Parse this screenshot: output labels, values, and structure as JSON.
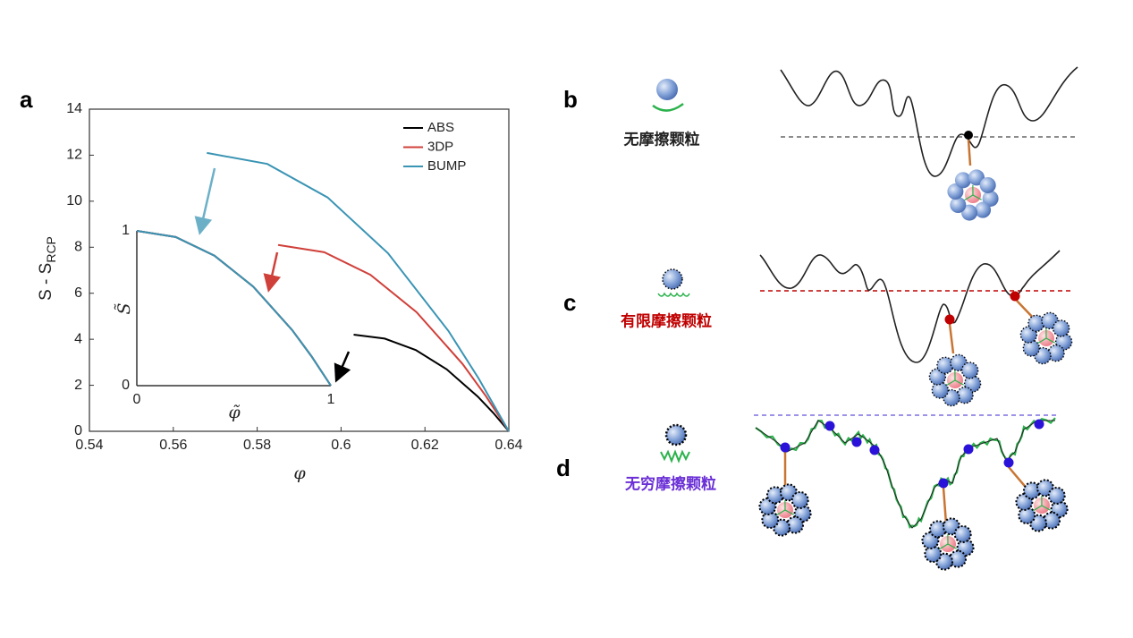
{
  "chart_data": [
    {
      "type": "line",
      "panel_label": "a",
      "xlabel": "φ",
      "ylabel": {
        "text": "S - S",
        "subscript": "RCP"
      },
      "xlim": [
        0.54,
        0.64
      ],
      "xticks": [
        0.54,
        0.56,
        0.58,
        0.6,
        0.62,
        0.64
      ],
      "ylim": [
        0,
        14
      ],
      "yticks": [
        0,
        2,
        4,
        6,
        8,
        10,
        12,
        14
      ],
      "box": true,
      "legend": "upper right",
      "series": [
        {
          "name": "ABS",
          "color": "#000000",
          "x": [
            0.603,
            0.6104,
            0.6178,
            0.6252,
            0.6326,
            0.6363,
            0.64
          ],
          "values": [
            4.2,
            4.03,
            3.53,
            2.69,
            1.51,
            0.8,
            0
          ]
        },
        {
          "name": "3DP",
          "color": "#d0403a",
          "x": [
            0.585,
            0.596,
            0.607,
            0.618,
            0.629,
            0.6345,
            0.64
          ],
          "values": [
            8.1,
            7.78,
            6.8,
            5.18,
            2.92,
            1.54,
            0
          ]
        },
        {
          "name": "BUMP",
          "color": "#3a94b4",
          "x": [
            0.568,
            0.5824,
            0.5968,
            0.6112,
            0.6256,
            0.6328,
            0.64
          ],
          "values": [
            12.1,
            11.62,
            10.16,
            7.74,
            4.36,
            2.3,
            0
          ]
        }
      ]
    },
    {
      "type": "line",
      "xlabel": "φ̃",
      "ylabel": {
        "text": "S̃"
      },
      "xlim": [
        0,
        1
      ],
      "xticks": [
        0,
        1
      ],
      "ylim": [
        0,
        1
      ],
      "yticks": [
        0,
        1
      ],
      "box": false,
      "series": [
        {
          "color": "#000000",
          "x": [
            0,
            0.2,
            0.4,
            0.6,
            0.8,
            0.9,
            1
          ],
          "values": [
            1,
            0.96,
            0.84,
            0.64,
            0.36,
            0.19,
            0
          ]
        },
        {
          "color": "#d0403a",
          "x": [
            0,
            0.2,
            0.4,
            0.6,
            0.8,
            0.9,
            1
          ],
          "values": [
            1,
            0.96,
            0.84,
            0.64,
            0.36,
            0.19,
            0
          ]
        },
        {
          "color": "#3a94b4",
          "x": [
            0,
            0.2,
            0.4,
            0.6,
            0.8,
            0.9,
            1
          ],
          "values": [
            1,
            0.96,
            0.84,
            0.64,
            0.36,
            0.19,
            0
          ]
        }
      ]
    }
  ],
  "diagram": {
    "panels": [
      {
        "label": "b",
        "caption": "无摩擦颗粒"
      },
      {
        "label": "c",
        "caption": "有限摩擦颗粒"
      },
      {
        "label": "d",
        "caption": "无穷摩擦颗粒"
      }
    ]
  }
}
